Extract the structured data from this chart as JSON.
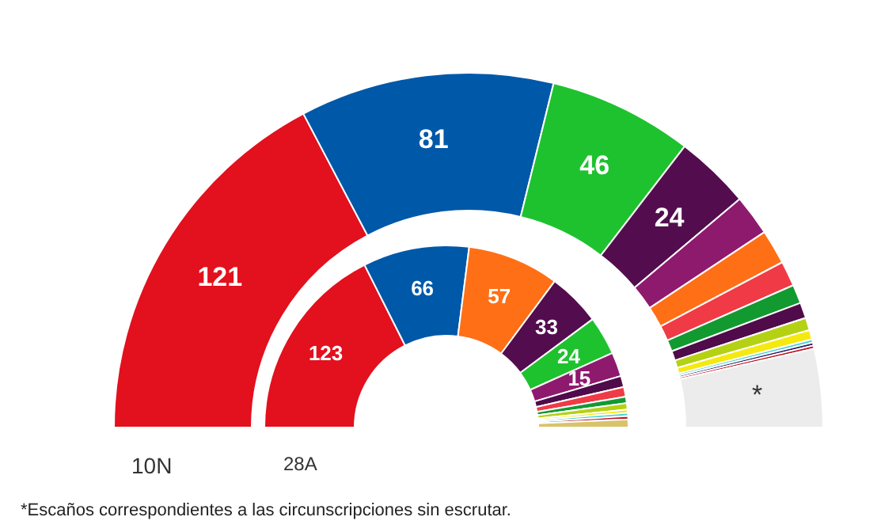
{
  "chart_data": [
    {
      "type": "donut",
      "title": "10N",
      "categories": [
        null,
        null,
        null,
        null,
        null,
        null,
        null,
        null,
        null,
        null,
        null,
        null,
        null,
        null,
        null
      ],
      "values": [
        121,
        81,
        46,
        24,
        13,
        11,
        8,
        6,
        5,
        4,
        3,
        1,
        1,
        1,
        25
      ],
      "colors": [
        "#e3101e",
        "#0058a8",
        "#1ec22e",
        "#530d4e",
        "#8e1a6e",
        "#ff6f16",
        "#f03a45",
        "#129a31",
        "#4f0b4a",
        "#b5d114",
        "#f5e90f",
        "#3fd0d0",
        "#2b1f6b",
        "#c0141d",
        "#ececec"
      ],
      "value_labels": [
        "121",
        "81",
        "46",
        "24",
        null,
        null,
        null,
        null,
        null,
        null,
        null,
        null,
        null,
        null,
        "*"
      ],
      "annotations": [
        "*Escaños correspondientes a las circunscripciones sin escrutar."
      ]
    },
    {
      "type": "donut",
      "title": "28A",
      "categories": [
        null,
        null,
        null,
        null,
        null,
        null,
        null,
        null,
        null,
        null,
        null,
        null,
        null,
        null
      ],
      "values": [
        123,
        66,
        57,
        33,
        24,
        15,
        7,
        6,
        4,
        4,
        2,
        2,
        2,
        5
      ],
      "colors": [
        "#e3101e",
        "#0058a8",
        "#ff6f16",
        "#530d4e",
        "#1ec22e",
        "#8e1a6e",
        "#4f0b4a",
        "#f03a45",
        "#129a31",
        "#b5d114",
        "#f5e90f",
        "#3fd0d0",
        "#c0141d",
        "#d8c36a"
      ],
      "value_labels": [
        "123",
        "66",
        "57",
        "33",
        "24",
        "15",
        null,
        null,
        null,
        null,
        null,
        null,
        null,
        null
      ]
    }
  ]
}
